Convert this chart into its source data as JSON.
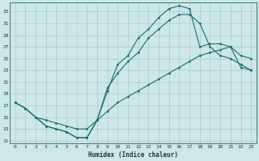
{
  "xlabel": "Humidex (Indice chaleur)",
  "ylabel": "",
  "bg_color": "#cce8e8",
  "grid_color": "#aacccc",
  "line_color": "#1a6e6e",
  "xlim": [
    -0.5,
    23.5
  ],
  "ylim": [
    10.5,
    34.5
  ],
  "xticks": [
    0,
    1,
    2,
    3,
    4,
    5,
    6,
    7,
    8,
    9,
    10,
    11,
    12,
    13,
    14,
    15,
    16,
    17,
    18,
    19,
    20,
    21,
    22,
    23
  ],
  "yticks": [
    11,
    13,
    15,
    17,
    19,
    21,
    23,
    25,
    27,
    29,
    31,
    33
  ],
  "line1_x": [
    0,
    1,
    2,
    3,
    4,
    5,
    6,
    7,
    8,
    9,
    10,
    11,
    12,
    13,
    14,
    15,
    16,
    17,
    18,
    19,
    20,
    21,
    22,
    23
  ],
  "line1_y": [
    17.5,
    16.5,
    15.0,
    13.5,
    13.0,
    12.5,
    11.5,
    11.5,
    14.5,
    19.5,
    24.0,
    25.5,
    28.5,
    30.0,
    32.0,
    33.5,
    34.0,
    33.5,
    27.0,
    27.5,
    27.5,
    27.0,
    25.5,
    25.0
  ],
  "line2_x": [
    0,
    1,
    2,
    3,
    4,
    5,
    6,
    7,
    8,
    9,
    10,
    11,
    12,
    13,
    14,
    15,
    16,
    17,
    18,
    19,
    20,
    21,
    22,
    23
  ],
  "line2_y": [
    17.5,
    16.5,
    15.0,
    13.5,
    13.0,
    12.5,
    11.5,
    11.5,
    14.5,
    20.0,
    22.5,
    24.5,
    26.0,
    28.5,
    30.0,
    31.5,
    32.5,
    32.5,
    31.0,
    27.0,
    25.5,
    25.0,
    24.0,
    23.0
  ],
  "line3_x": [
    0,
    1,
    2,
    3,
    4,
    5,
    6,
    7,
    8,
    9,
    10,
    11,
    12,
    13,
    14,
    15,
    16,
    17,
    18,
    19,
    20,
    21,
    22,
    23
  ],
  "line3_y": [
    17.5,
    16.5,
    15.0,
    14.5,
    14.0,
    13.5,
    13.0,
    13.0,
    14.5,
    16.0,
    17.5,
    18.5,
    19.5,
    20.5,
    21.5,
    22.5,
    23.5,
    24.5,
    25.5,
    26.0,
    26.5,
    27.0,
    23.5,
    23.0
  ]
}
